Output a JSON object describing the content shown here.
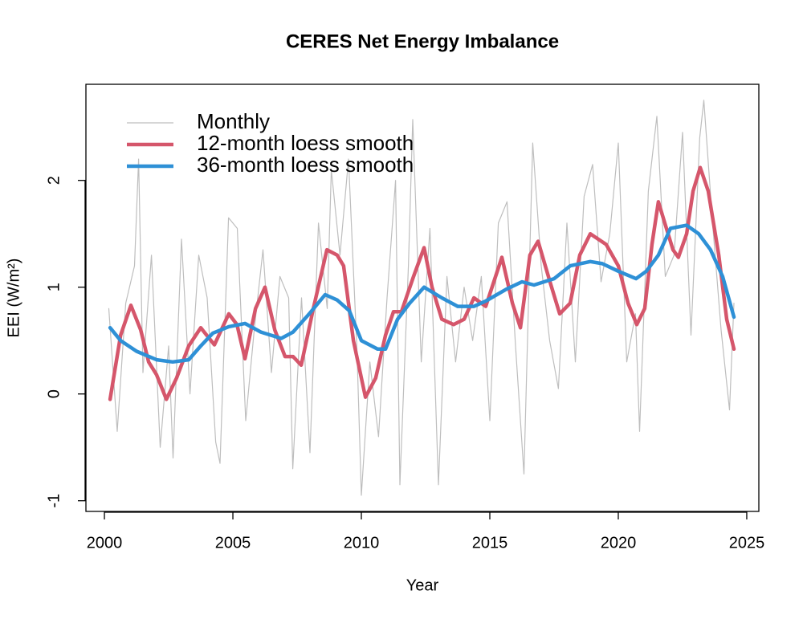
{
  "chart_data": {
    "type": "line",
    "title": "CERES Net Energy Imbalance",
    "x_label": "Year",
    "y_label": "EEI (W/m²)",
    "xlim": [
      1999.28,
      2025.47
    ],
    "xticks": [
      2000,
      2005,
      2010,
      2015,
      2020,
      2025
    ],
    "ylim": [
      -1.1,
      2.9
    ],
    "yticks": [
      -1,
      0,
      1,
      2
    ],
    "legend": "top-left",
    "series": [
      {
        "name": "Monthly",
        "color": "#bebebe",
        "x": [
          2000.17,
          2000.5,
          2000.83,
          2001.17,
          2001.33,
          2001.5,
          2001.83,
          2002.17,
          2002.5,
          2002.67,
          2003.0,
          2003.33,
          2003.67,
          2004.0,
          2004.33,
          2004.5,
          2004.83,
          2005.17,
          2005.5,
          2005.83,
          2006.17,
          2006.5,
          2006.83,
          2007.17,
          2007.33,
          2007.67,
          2008.0,
          2008.33,
          2008.67,
          2008.83,
          2009.17,
          2009.5,
          2009.83,
          2010.0,
          2010.33,
          2010.67,
          2011.0,
          2011.33,
          2011.5,
          2011.83,
          2012.0,
          2012.33,
          2012.67,
          2013.0,
          2013.33,
          2013.67,
          2014.0,
          2014.33,
          2014.67,
          2015.0,
          2015.33,
          2015.67,
          2016.0,
          2016.33,
          2016.67,
          2017.0,
          2017.33,
          2017.67,
          2018.0,
          2018.33,
          2018.67,
          2019.0,
          2019.33,
          2019.67,
          2020.0,
          2020.33,
          2020.67,
          2020.83,
          2021.17,
          2021.5,
          2021.83,
          2022.17,
          2022.5,
          2022.83,
          2023.17,
          2023.33,
          2023.67,
          2024.0,
          2024.33,
          2024.5
        ],
        "values": [
          0.8,
          -0.35,
          0.85,
          1.2,
          2.2,
          0.2,
          1.3,
          -0.5,
          0.45,
          -0.6,
          1.45,
          0.0,
          1.3,
          0.9,
          -0.45,
          -0.65,
          1.65,
          1.55,
          -0.25,
          0.6,
          1.35,
          0.2,
          1.1,
          0.9,
          -0.7,
          0.9,
          -0.55,
          1.6,
          0.8,
          2.1,
          1.3,
          2.2,
          0.4,
          -0.95,
          0.3,
          -0.4,
          0.9,
          2.0,
          -0.85,
          1.2,
          2.57,
          0.3,
          1.55,
          -0.85,
          1.1,
          0.3,
          1.0,
          0.5,
          1.1,
          -0.25,
          1.6,
          1.8,
          0.45,
          -0.75,
          2.35,
          1.2,
          0.5,
          0.05,
          1.6,
          0.3,
          1.85,
          2.15,
          1.05,
          1.5,
          2.35,
          0.3,
          0.75,
          -0.35,
          1.9,
          2.6,
          1.1,
          1.3,
          2.45,
          0.55,
          2.4,
          2.75,
          1.6,
          0.6,
          -0.15,
          0.85
        ]
      },
      {
        "name": "12-month loess smooth",
        "color": "#d5566b",
        "x": [
          2000.22,
          2000.63,
          2001.03,
          2001.41,
          2001.72,
          2002.03,
          2002.41,
          2002.81,
          2003.28,
          2003.75,
          2004.28,
          2004.84,
          2005.16,
          2005.47,
          2005.88,
          2006.25,
          2006.63,
          2007.03,
          2007.34,
          2007.66,
          2008.13,
          2008.66,
          2009.06,
          2009.31,
          2009.69,
          2010.16,
          2010.56,
          2010.94,
          2011.25,
          2011.56,
          2012.03,
          2012.44,
          2012.75,
          2013.13,
          2013.59,
          2014.0,
          2014.38,
          2014.84,
          2015.47,
          2015.88,
          2016.19,
          2016.56,
          2016.88,
          2017.34,
          2017.72,
          2018.13,
          2018.5,
          2018.91,
          2019.53,
          2020.0,
          2020.38,
          2020.72,
          2021.03,
          2021.31,
          2021.56,
          2021.81,
          2022.13,
          2022.34,
          2022.66,
          2022.91,
          2023.19,
          2023.5,
          2023.91,
          2024.22,
          2024.5
        ],
        "values": [
          -0.05,
          0.55,
          0.83,
          0.6,
          0.3,
          0.18,
          -0.05,
          0.15,
          0.45,
          0.62,
          0.46,
          0.75,
          0.65,
          0.33,
          0.8,
          1.0,
          0.6,
          0.35,
          0.35,
          0.27,
          0.8,
          1.35,
          1.3,
          1.2,
          0.5,
          -0.03,
          0.15,
          0.55,
          0.77,
          0.77,
          1.1,
          1.37,
          1.0,
          0.7,
          0.65,
          0.7,
          0.9,
          0.82,
          1.28,
          0.85,
          0.62,
          1.3,
          1.43,
          1.05,
          0.75,
          0.85,
          1.3,
          1.5,
          1.4,
          1.2,
          0.85,
          0.65,
          0.8,
          1.4,
          1.8,
          1.6,
          1.35,
          1.28,
          1.5,
          1.9,
          2.12,
          1.9,
          1.3,
          0.7,
          0.42
        ]
      },
      {
        "name": "36-month loess smooth",
        "color": "#2e90d6",
        "x": [
          2000.22,
          2000.63,
          2001.25,
          2002.03,
          2002.66,
          2003.28,
          2003.75,
          2004.22,
          2004.84,
          2005.47,
          2006.09,
          2006.88,
          2007.34,
          2007.97,
          2008.59,
          2009.06,
          2009.53,
          2010.0,
          2010.63,
          2010.94,
          2011.41,
          2011.88,
          2012.44,
          2013.13,
          2013.75,
          2014.38,
          2014.84,
          2015.63,
          2016.25,
          2016.72,
          2017.5,
          2018.13,
          2018.91,
          2019.38,
          2020.0,
          2020.69,
          2021.09,
          2021.56,
          2022.03,
          2022.66,
          2023.13,
          2023.59,
          2024.06,
          2024.5
        ],
        "values": [
          0.62,
          0.5,
          0.4,
          0.32,
          0.3,
          0.32,
          0.45,
          0.57,
          0.63,
          0.66,
          0.58,
          0.52,
          0.58,
          0.75,
          0.93,
          0.88,
          0.78,
          0.5,
          0.42,
          0.42,
          0.7,
          0.85,
          1.0,
          0.9,
          0.82,
          0.82,
          0.87,
          0.98,
          1.05,
          1.02,
          1.08,
          1.2,
          1.24,
          1.22,
          1.15,
          1.08,
          1.15,
          1.3,
          1.55,
          1.58,
          1.5,
          1.35,
          1.1,
          0.72
        ]
      }
    ]
  }
}
